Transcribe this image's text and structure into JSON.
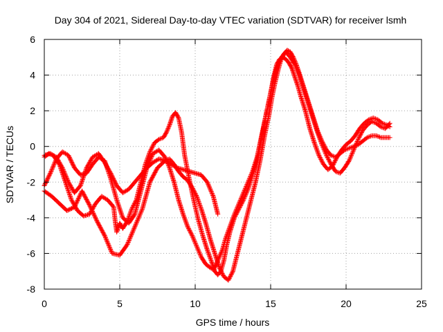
{
  "chart_data": {
    "type": "scatter",
    "marker": "+",
    "color": "#ff0000",
    "title": "Day 304 of 2021, Sidereal Day-to-day VTEC variation (SDTVAR) for receiver lsmh",
    "xlabel": "GPS time / hours",
    "ylabel": "SDTVAR / TECUs",
    "xlim": [
      0,
      25
    ],
    "ylim": [
      -8,
      6
    ],
    "xticks": [
      0,
      5,
      10,
      15,
      20,
      25
    ],
    "yticks": [
      -8,
      -6,
      -4,
      -2,
      0,
      2,
      4,
      6
    ],
    "grid": true,
    "series": [
      {
        "x": [
          0.0,
          0.3,
          0.6,
          1.0,
          1.4,
          1.8,
          2.2,
          2.6,
          3.0,
          3.4,
          3.8,
          4.2,
          4.6,
          4.7,
          4.8,
          5.0,
          5.2,
          5.5,
          5.8,
          6.1,
          6.4,
          6.7,
          7.0,
          7.3,
          7.6,
          7.9,
          8.1,
          8.3,
          8.5,
          8.7,
          8.9,
          9.1,
          9.3,
          9.6,
          9.9,
          10.2,
          10.5,
          10.8,
          11.1,
          11.3,
          11.5,
          11.7,
          11.9,
          12.1,
          12.3,
          12.6,
          12.9,
          13.2,
          13.5,
          13.8,
          14.1,
          14.4,
          14.7,
          15.0,
          15.2,
          15.4,
          15.6,
          15.8,
          16.0,
          16.2,
          16.4,
          16.6,
          16.8,
          17.0,
          17.3,
          17.6,
          17.9,
          18.2,
          18.5,
          18.8,
          19.1,
          19.4,
          19.7,
          20.0,
          20.3,
          20.6,
          20.9,
          21.2,
          21.5,
          21.8,
          22.1,
          22.4,
          22.7,
          22.9
        ],
        "y": [
          -0.6,
          -0.4,
          -0.5,
          -1.0,
          -2.0,
          -3.0,
          -3.6,
          -3.9,
          -3.8,
          -3.2,
          -2.8,
          -3.0,
          -3.4,
          -4.2,
          -4.8,
          -4.3,
          -4.6,
          -4.2,
          -3.5,
          -3.0,
          -2.0,
          -1.0,
          -0.3,
          0.2,
          0.4,
          0.5,
          0.8,
          1.2,
          1.7,
          1.9,
          1.6,
          0.8,
          -0.5,
          -1.8,
          -3.0,
          -4.1,
          -5.0,
          -5.8,
          -6.5,
          -7.0,
          -7.2,
          -7.0,
          -6.4,
          -5.5,
          -4.8,
          -4.0,
          -3.5,
          -3.0,
          -2.4,
          -1.6,
          -0.8,
          0.5,
          1.8,
          3.0,
          3.9,
          4.6,
          4.9,
          5.0,
          4.9,
          4.7,
          4.4,
          3.9,
          3.4,
          2.8,
          2.0,
          1.0,
          0.2,
          -0.5,
          -1.0,
          -1.3,
          -1.1,
          -0.6,
          -0.2,
          0.1,
          0.3,
          0.6,
          1.0,
          1.3,
          1.5,
          1.6,
          1.5,
          1.3,
          1.2,
          1.1
        ]
      },
      {
        "x": [
          0.0,
          0.4,
          0.8,
          1.2,
          1.6,
          2.0,
          2.4,
          2.8,
          3.2,
          3.6,
          4.0,
          4.4,
          4.8,
          5.2,
          5.6,
          6.0,
          6.4,
          6.8,
          7.2,
          7.6,
          8.0,
          8.3,
          8.6,
          8.9,
          9.2,
          9.5,
          9.8,
          10.1,
          10.4,
          10.7,
          11.0,
          11.2,
          11.4,
          11.6,
          11.8,
          12.0,
          12.3,
          12.6,
          12.9,
          13.2,
          13.5,
          13.8,
          14.1,
          14.4,
          14.7,
          15.0,
          15.2,
          15.4,
          15.6,
          15.8,
          16.0,
          16.3,
          16.6,
          16.9,
          17.2,
          17.5,
          17.8,
          18.1,
          18.4,
          18.7,
          19.0,
          19.3,
          19.6,
          19.9,
          20.2,
          20.5,
          20.8,
          21.1,
          21.4,
          21.7,
          22.0,
          22.3,
          22.6,
          22.9
        ],
        "y": [
          -2.2,
          -1.5,
          -0.7,
          -0.3,
          -0.5,
          -1.2,
          -1.6,
          -1.5,
          -1.0,
          -0.6,
          -0.8,
          -1.8,
          -3.0,
          -4.0,
          -4.3,
          -3.8,
          -2.5,
          -1.2,
          -0.4,
          -0.2,
          -0.6,
          -1.2,
          -2.0,
          -3.0,
          -3.8,
          -4.5,
          -5.0,
          -5.6,
          -6.2,
          -6.6,
          -6.8,
          -6.9,
          -6.6,
          -6.2,
          -5.8,
          -5.2,
          -4.5,
          -3.8,
          -3.2,
          -2.6,
          -2.0,
          -1.4,
          -0.6,
          0.6,
          1.8,
          3.0,
          3.8,
          4.4,
          4.8,
          5.1,
          5.3,
          5.0,
          4.6,
          4.0,
          3.2,
          2.4,
          1.6,
          0.8,
          0.1,
          -0.5,
          -1.0,
          -1.4,
          -1.5,
          -1.2,
          -0.8,
          -0.2,
          0.4,
          0.9,
          1.2,
          1.4,
          1.3,
          1.1,
          1.0,
          1.3
        ]
      },
      {
        "x": [
          0.0,
          0.5,
          1.0,
          1.5,
          2.0,
          2.5,
          3.0,
          3.5,
          4.0,
          4.5,
          5.0,
          5.5,
          6.0,
          6.5,
          7.0,
          7.5,
          8.0,
          8.3,
          8.6,
          8.9,
          9.2,
          9.5,
          9.8,
          10.1,
          10.4,
          10.7,
          11.0,
          11.3,
          11.6,
          11.9,
          12.2,
          12.5,
          12.8,
          13.1,
          13.4,
          13.7,
          14.0,
          14.3,
          14.6,
          14.9,
          15.1,
          15.3,
          15.5,
          15.7,
          15.9,
          16.1,
          16.3,
          16.5,
          16.7,
          16.9,
          17.2,
          17.5,
          17.8,
          18.1,
          18.4,
          18.7,
          19.0,
          19.3,
          19.6,
          19.9,
          20.2,
          20.5,
          20.8,
          21.1,
          21.4,
          21.7,
          22.0,
          22.3,
          22.6,
          22.9
        ],
        "y": [
          -2.5,
          -2.8,
          -3.2,
          -3.6,
          -3.4,
          -2.5,
          -3.3,
          -4.2,
          -5.0,
          -6.0,
          -6.1,
          -5.5,
          -4.5,
          -3.5,
          -2.0,
          -1.2,
          -0.8,
          -0.7,
          -1.0,
          -1.4,
          -1.7,
          -1.9,
          -2.3,
          -2.8,
          -3.5,
          -4.3,
          -5.2,
          -6.0,
          -6.8,
          -7.3,
          -7.5,
          -7.0,
          -6.0,
          -5.0,
          -4.0,
          -3.0,
          -2.0,
          -0.8,
          0.6,
          1.8,
          2.8,
          3.6,
          4.3,
          4.9,
          5.2,
          5.4,
          5.3,
          5.0,
          4.6,
          4.1,
          3.3,
          2.5,
          1.7,
          0.9,
          0.3,
          -0.2,
          -0.5,
          -0.6,
          -0.4,
          -0.2,
          -0.1,
          0.0,
          0.1,
          0.3,
          0.5,
          0.6,
          0.6,
          0.5,
          0.5,
          0.5
        ]
      },
      {
        "x": [
          0.0,
          0.4,
          0.8,
          1.2,
          1.6,
          2.0,
          2.4,
          2.8,
          3.2,
          3.6,
          4.0,
          4.4,
          4.8,
          5.2,
          5.6,
          6.0,
          6.4,
          6.8,
          7.2,
          7.6,
          8.0,
          8.4,
          8.8,
          9.2,
          9.6,
          10.0,
          10.4,
          10.8,
          11.2,
          11.5
        ],
        "y": [
          -0.5,
          -0.4,
          -0.6,
          -1.2,
          -2.0,
          -2.6,
          -2.2,
          -1.2,
          -0.6,
          -0.4,
          -0.9,
          -1.5,
          -2.2,
          -2.6,
          -2.4,
          -2.0,
          -1.6,
          -1.2,
          -0.9,
          -0.7,
          -0.8,
          -1.0,
          -1.2,
          -1.3,
          -1.4,
          -1.5,
          -1.6,
          -2.0,
          -2.8,
          -3.8
        ]
      }
    ]
  }
}
